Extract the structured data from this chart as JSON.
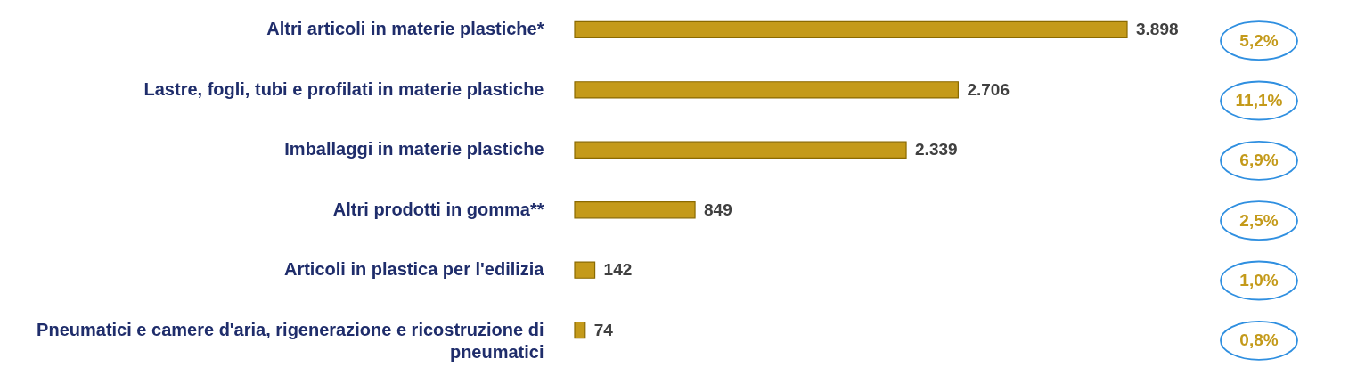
{
  "chart_data": {
    "type": "bar",
    "orientation": "horizontal",
    "color": "#c49a1a",
    "value_labels": [
      "3.898",
      "2.706",
      "2.339",
      "849",
      "142",
      "74"
    ],
    "categories": [
      "Altri articoli in materie plastiche*",
      "Lastre, fogli, tubi e profilati in materie plastiche",
      "Imballaggi in materie plastiche",
      "Altri prodotti in gomma**",
      "Articoli in plastica per l'edilizia",
      "Pneumatici e camere d'aria, rigenerazione e ricostruzione di pneumatici"
    ],
    "values": [
      3898,
      2706,
      2339,
      849,
      142,
      74
    ],
    "annotations": [
      "5,2%",
      "11,1%",
      "6,9%",
      "2,5%",
      "1,0%",
      "0,8%"
    ]
  }
}
